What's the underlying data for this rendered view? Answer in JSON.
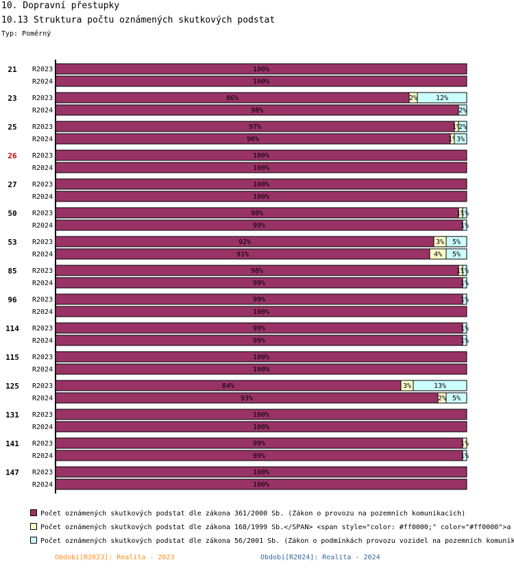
{
  "header": {
    "title": "10. Dopravní přestupky",
    "subtitle": "10.13 Struktura počtu oznámených skutkových podstat",
    "type_label": "Typ: Poměrný"
  },
  "legend": [
    {
      "label": "Počet oznámených skutkových podstat dle zákona 361/2000 Sb. (Zákon o provozu na pozemních komunikacích)",
      "color": "#993366"
    },
    {
      "label": "Počet oznámených skutkových podstat dle zákona 168/1999 Sb.</SPAN> <span style=\"color: #ff0000;\" color=\"#ff0000\">a",
      "color": "#ffffcc"
    },
    {
      "label": "Počet oznámených skutkových podstat dle zákona 56/2001 Sb. (Zákon o podmínkách provozu vozidel na pozemních komunik",
      "color": "#ccffff"
    }
  ],
  "periods": [
    {
      "label": "Období[R2023]: Realita - 2023",
      "color": "#ff8c1a"
    },
    {
      "label": "Období[R2024]: Realita - 2024",
      "color": "#336699"
    }
  ],
  "chart_data": {
    "type": "bar",
    "orientation": "horizontal",
    "stacked": true,
    "normalized_percent": true,
    "series_names": [
      "361/2000 Sb.",
      "168/1999 Sb.",
      "56/2001 Sb."
    ],
    "series_colors": [
      "#993366",
      "#ffffcc",
      "#ccffff"
    ],
    "groups": [
      {
        "code": "21",
        "highlight": false,
        "rows": [
          {
            "label": "R2023",
            "values": [
              100,
              0,
              0
            ],
            "labels": [
              "100%",
              "",
              ""
            ]
          },
          {
            "label": "R2024",
            "values": [
              100,
              0,
              0
            ],
            "labels": [
              "100%",
              "",
              ""
            ]
          }
        ]
      },
      {
        "code": "23",
        "highlight": false,
        "rows": [
          {
            "label": "R2023",
            "values": [
              86,
              2,
              12
            ],
            "labels": [
              "86%",
              "2%",
              "12%"
            ]
          },
          {
            "label": "R2024",
            "values": [
              98,
              0,
              2
            ],
            "labels": [
              "98%",
              "",
              "2%"
            ]
          }
        ]
      },
      {
        "code": "25",
        "highlight": false,
        "rows": [
          {
            "label": "R2023",
            "values": [
              97,
              1,
              2
            ],
            "labels": [
              "97%",
              "1%",
              "2%"
            ]
          },
          {
            "label": "R2024",
            "values": [
              96,
              1,
              3
            ],
            "labels": [
              "96%",
              "1%",
              "3%"
            ]
          }
        ]
      },
      {
        "code": "26",
        "highlight": true,
        "rows": [
          {
            "label": "R2023",
            "values": [
              100,
              0,
              0
            ],
            "labels": [
              "100%",
              "",
              ""
            ]
          },
          {
            "label": "R2024",
            "values": [
              100,
              0,
              0
            ],
            "labels": [
              "100%",
              "",
              ""
            ]
          }
        ]
      },
      {
        "code": "27",
        "highlight": false,
        "rows": [
          {
            "label": "R2023",
            "values": [
              100,
              0,
              0
            ],
            "labels": [
              "100%",
              "",
              ""
            ]
          },
          {
            "label": "R2024",
            "values": [
              100,
              0,
              0
            ],
            "labels": [
              "100%",
              "",
              ""
            ]
          }
        ]
      },
      {
        "code": "50",
        "highlight": false,
        "rows": [
          {
            "label": "R2023",
            "values": [
              98,
              1,
              1
            ],
            "labels": [
              "98%",
              "1%",
              "1%"
            ]
          },
          {
            "label": "R2024",
            "values": [
              99,
              0,
              1
            ],
            "labels": [
              "99%",
              "",
              "1%"
            ]
          }
        ]
      },
      {
        "code": "53",
        "highlight": false,
        "rows": [
          {
            "label": "R2023",
            "values": [
              92,
              3,
              5
            ],
            "labels": [
              "92%",
              "3%",
              "5%"
            ]
          },
          {
            "label": "R2024",
            "values": [
              91,
              4,
              5
            ],
            "labels": [
              "91%",
              "4%",
              "5%"
            ]
          }
        ]
      },
      {
        "code": "85",
        "highlight": false,
        "rows": [
          {
            "label": "R2023",
            "values": [
              98,
              1,
              1
            ],
            "labels": [
              "98%",
              "1%",
              "1%"
            ]
          },
          {
            "label": "R2024",
            "values": [
              99,
              0,
              1
            ],
            "labels": [
              "99%",
              "",
              "1%"
            ]
          }
        ]
      },
      {
        "code": "96",
        "highlight": false,
        "rows": [
          {
            "label": "R2023",
            "values": [
              99,
              0,
              1
            ],
            "labels": [
              "99%",
              "",
              "1%"
            ]
          },
          {
            "label": "R2024",
            "values": [
              100,
              0,
              0
            ],
            "labels": [
              "100%",
              "",
              ""
            ]
          }
        ]
      },
      {
        "code": "114",
        "highlight": false,
        "rows": [
          {
            "label": "R2023",
            "values": [
              99,
              0,
              1
            ],
            "labels": [
              "99%",
              "",
              "1%"
            ]
          },
          {
            "label": "R2024",
            "values": [
              99,
              0,
              1
            ],
            "labels": [
              "99%",
              "",
              "1%"
            ]
          }
        ]
      },
      {
        "code": "115",
        "highlight": false,
        "rows": [
          {
            "label": "R2023",
            "values": [
              100,
              0,
              0
            ],
            "labels": [
              "100%",
              "",
              ""
            ]
          },
          {
            "label": "R2024",
            "values": [
              100,
              0,
              0
            ],
            "labels": [
              "100%",
              "",
              ""
            ]
          }
        ]
      },
      {
        "code": "125",
        "highlight": false,
        "rows": [
          {
            "label": "R2023",
            "values": [
              84,
              3,
              13
            ],
            "labels": [
              "84%",
              "3%",
              "13%"
            ]
          },
          {
            "label": "R2024",
            "values": [
              93,
              2,
              5
            ],
            "labels": [
              "93%",
              "2%",
              "5%"
            ]
          }
        ]
      },
      {
        "code": "131",
        "highlight": false,
        "rows": [
          {
            "label": "R2023",
            "values": [
              100,
              0,
              0
            ],
            "labels": [
              "100%",
              "",
              ""
            ]
          },
          {
            "label": "R2024",
            "values": [
              100,
              0,
              0
            ],
            "labels": [
              "100%",
              "",
              ""
            ]
          }
        ]
      },
      {
        "code": "141",
        "highlight": false,
        "rows": [
          {
            "label": "R2023",
            "values": [
              99,
              1,
              0
            ],
            "labels": [
              "99%",
              "1%",
              ""
            ]
          },
          {
            "label": "R2024",
            "values": [
              99,
              0,
              1
            ],
            "labels": [
              "99%",
              "",
              "1%"
            ]
          }
        ]
      },
      {
        "code": "147",
        "highlight": false,
        "rows": [
          {
            "label": "R2023",
            "values": [
              100,
              0,
              0
            ],
            "labels": [
              "100%",
              "",
              ""
            ]
          },
          {
            "label": "R2024",
            "values": [
              100,
              0,
              0
            ],
            "labels": [
              "100%",
              "",
              ""
            ]
          }
        ]
      }
    ]
  }
}
